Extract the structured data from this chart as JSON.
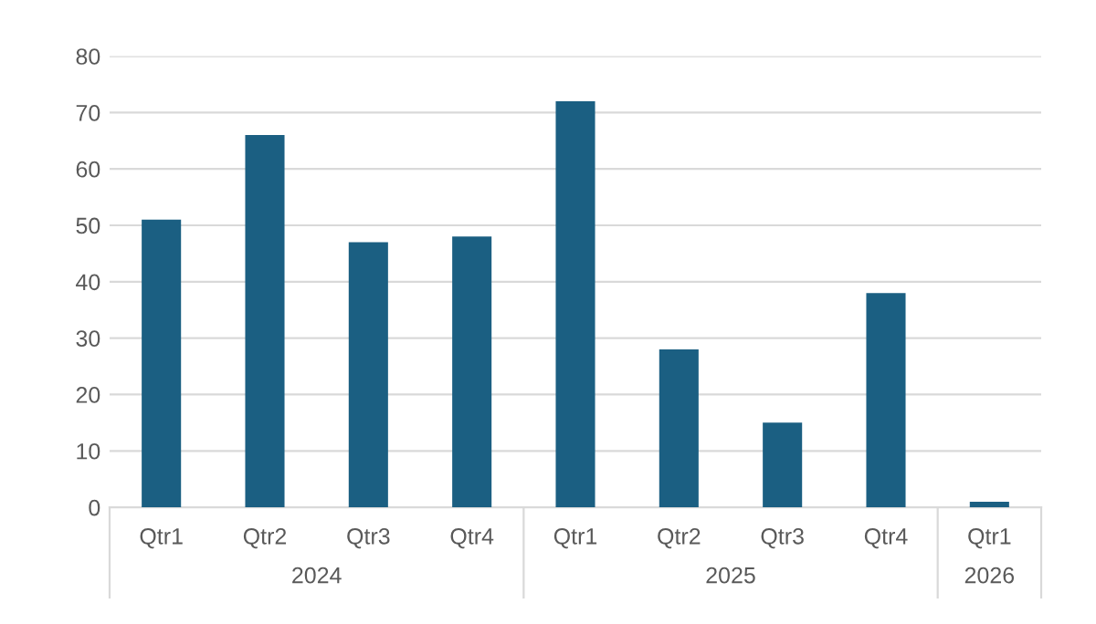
{
  "chart_data": {
    "type": "bar",
    "categories": [
      "Qtr1",
      "Qtr2",
      "Qtr3",
      "Qtr4",
      "Qtr1",
      "Qtr2",
      "Qtr3",
      "Qtr4",
      "Qtr1"
    ],
    "values": [
      51,
      66,
      47,
      48,
      72,
      28,
      15,
      38,
      1
    ],
    "color": "#1b5f82",
    "annotations": [
      "2024",
      "2025",
      "2026"
    ],
    "ylim": [
      0,
      80
    ],
    "yticks": [
      0,
      10,
      20,
      30,
      40,
      50,
      60,
      70,
      80
    ],
    "grid": "y"
  }
}
